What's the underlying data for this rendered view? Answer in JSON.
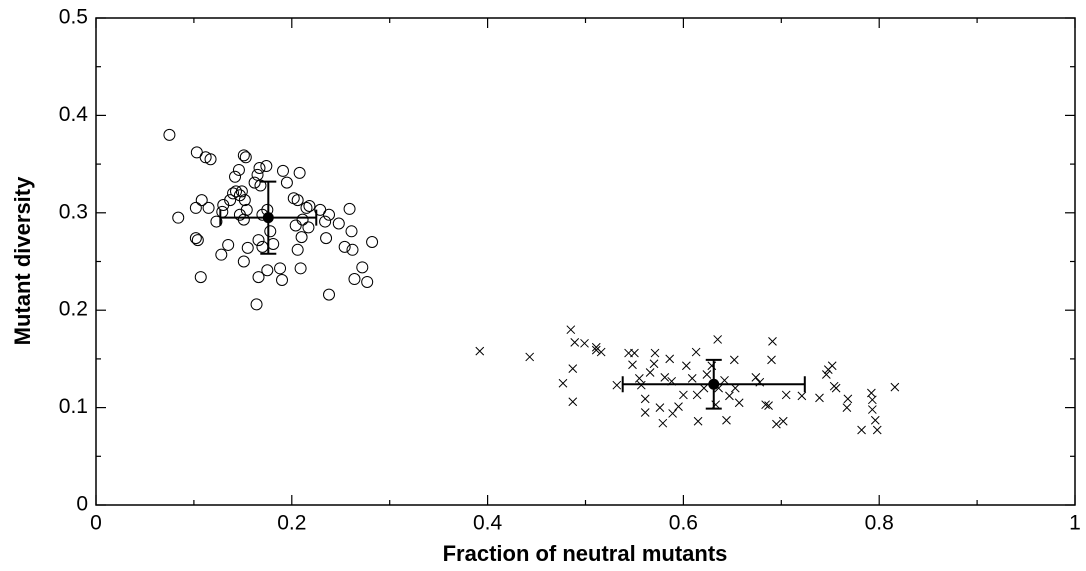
{
  "chart_data": {
    "type": "scatter",
    "xlabel": "Fraction of neutral mutants",
    "ylabel": "Mutant diversity",
    "xlim": [
      0,
      1
    ],
    "ylim": [
      0,
      0.5
    ],
    "xticks": [
      0,
      0.2,
      0.4,
      0.6,
      0.8,
      1
    ],
    "yticks": [
      0,
      0.1,
      0.2,
      0.3,
      0.4,
      0.5
    ],
    "xminorticks": [
      0.1,
      0.3,
      0.5,
      0.7,
      0.9
    ],
    "yminorticks": [
      0.05,
      0.15,
      0.25,
      0.35,
      0.45
    ],
    "series": [
      {
        "marker": "circle",
        "color": "#000000",
        "x": [
          0.075,
          0.103,
          0.112,
          0.117,
          0.084,
          0.102,
          0.108,
          0.115,
          0.102,
          0.104,
          0.107,
          0.128,
          0.135,
          0.123,
          0.129,
          0.13,
          0.137,
          0.14,
          0.143,
          0.147,
          0.142,
          0.146,
          0.149,
          0.152,
          0.154,
          0.151,
          0.147,
          0.151,
          0.155,
          0.151,
          0.153,
          0.162,
          0.165,
          0.167,
          0.174,
          0.168,
          0.166,
          0.17,
          0.166,
          0.164,
          0.175,
          0.17,
          0.175,
          0.178,
          0.181,
          0.188,
          0.19,
          0.191,
          0.195,
          0.202,
          0.206,
          0.208,
          0.204,
          0.21,
          0.206,
          0.209,
          0.215,
          0.218,
          0.211,
          0.217,
          0.229,
          0.234,
          0.238,
          0.235,
          0.238,
          0.248,
          0.254,
          0.259,
          0.261,
          0.262,
          0.264,
          0.272,
          0.277,
          0.282
        ],
        "values": [
          0.38,
          0.362,
          0.357,
          0.355,
          0.295,
          0.305,
          0.313,
          0.305,
          0.274,
          0.272,
          0.234,
          0.257,
          0.267,
          0.291,
          0.301,
          0.308,
          0.313,
          0.32,
          0.322,
          0.318,
          0.337,
          0.344,
          0.322,
          0.313,
          0.303,
          0.293,
          0.298,
          0.25,
          0.264,
          0.359,
          0.357,
          0.331,
          0.339,
          0.346,
          0.348,
          0.328,
          0.272,
          0.265,
          0.234,
          0.206,
          0.241,
          0.298,
          0.303,
          0.281,
          0.268,
          0.243,
          0.231,
          0.343,
          0.331,
          0.315,
          0.313,
          0.341,
          0.287,
          0.275,
          0.262,
          0.243,
          0.305,
          0.307,
          0.293,
          0.285,
          0.303,
          0.291,
          0.298,
          0.274,
          0.216,
          0.289,
          0.265,
          0.304,
          0.281,
          0.262,
          0.232,
          0.244,
          0.229,
          0.27
        ]
      },
      {
        "marker": "cross",
        "color": "#000000",
        "x": [
          0.392,
          0.443,
          0.485,
          0.489,
          0.477,
          0.487,
          0.487,
          0.499,
          0.511,
          0.511,
          0.516,
          0.532,
          0.544,
          0.55,
          0.548,
          0.555,
          0.557,
          0.561,
          0.561,
          0.566,
          0.571,
          0.57,
          0.576,
          0.579,
          0.581,
          0.586,
          0.588,
          0.589,
          0.595,
          0.6,
          0.603,
          0.609,
          0.613,
          0.614,
          0.615,
          0.621,
          0.624,
          0.629,
          0.633,
          0.635,
          0.636,
          0.642,
          0.644,
          0.647,
          0.652,
          0.653,
          0.657,
          0.674,
          0.678,
          0.684,
          0.687,
          0.69,
          0.691,
          0.695,
          0.702,
          0.705,
          0.721,
          0.746,
          0.748,
          0.752,
          0.754,
          0.739,
          0.756,
          0.768,
          0.767,
          0.782,
          0.792,
          0.793,
          0.793,
          0.796,
          0.798,
          0.816
        ],
        "values": [
          0.158,
          0.152,
          0.18,
          0.167,
          0.125,
          0.14,
          0.106,
          0.166,
          0.162,
          0.159,
          0.157,
          0.123,
          0.156,
          0.156,
          0.144,
          0.13,
          0.123,
          0.109,
          0.095,
          0.136,
          0.156,
          0.145,
          0.1,
          0.084,
          0.131,
          0.15,
          0.127,
          0.094,
          0.101,
          0.113,
          0.143,
          0.13,
          0.157,
          0.113,
          0.086,
          0.12,
          0.134,
          0.143,
          0.103,
          0.17,
          0.12,
          0.128,
          0.087,
          0.112,
          0.149,
          0.12,
          0.105,
          0.131,
          0.126,
          0.103,
          0.102,
          0.149,
          0.168,
          0.083,
          0.086,
          0.113,
          0.112,
          0.134,
          0.139,
          0.143,
          0.122,
          0.11,
          0.12,
          0.109,
          0.1,
          0.077,
          0.115,
          0.108,
          0.098,
          0.087,
          0.077,
          0.121
        ]
      }
    ],
    "summary": [
      {
        "x": 0.176,
        "y": 0.295,
        "x_err": 0.049,
        "y_err": 0.037
      },
      {
        "x": 0.631,
        "y": 0.124,
        "x_err": 0.093,
        "y_err": 0.025
      }
    ]
  }
}
